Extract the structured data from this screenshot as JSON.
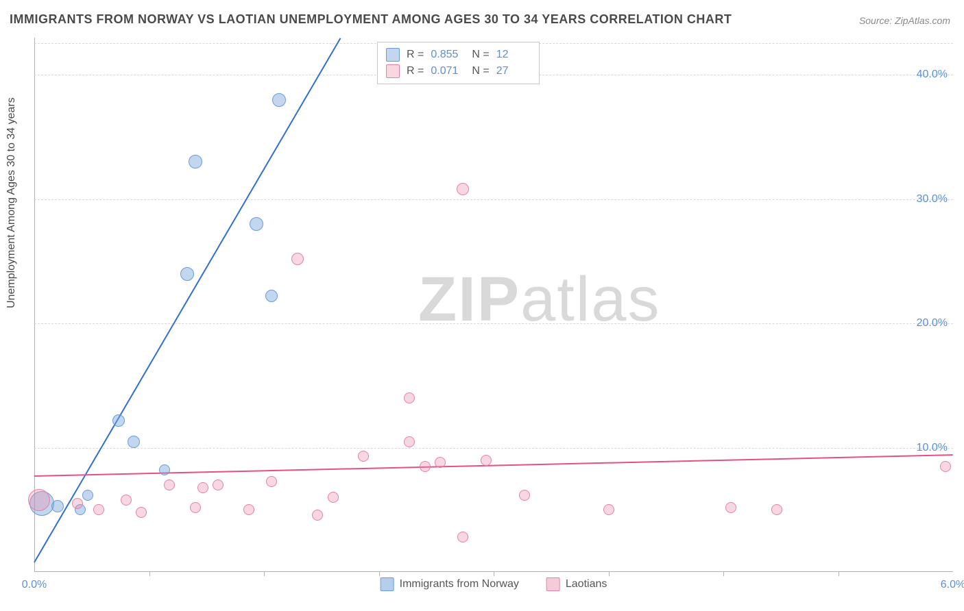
{
  "title": "IMMIGRANTS FROM NORWAY VS LAOTIAN UNEMPLOYMENT AMONG AGES 30 TO 34 YEARS CORRELATION CHART",
  "source": "Source: ZipAtlas.com",
  "y_axis_label": "Unemployment Among Ages 30 to 34 years",
  "watermark_a": "ZIP",
  "watermark_b": "atlas",
  "chart": {
    "type": "scatter",
    "xlim": [
      0.0,
      6.0
    ],
    "ylim": [
      0.0,
      43.0
    ],
    "x_ticks_labeled": [
      {
        "v": 0.0,
        "label": "0.0%"
      },
      {
        "v": 6.0,
        "label": "6.0%"
      }
    ],
    "x_ticks_minor": [
      0.75,
      1.5,
      2.25,
      3.0,
      3.75,
      4.5,
      5.25
    ],
    "y_ticks": [
      {
        "v": 10.0,
        "label": "10.0%"
      },
      {
        "v": 20.0,
        "label": "20.0%"
      },
      {
        "v": 30.0,
        "label": "30.0%"
      },
      {
        "v": 40.0,
        "label": "40.0%"
      }
    ],
    "grid_color": "#d8d8d8",
    "axis_color": "#b0b0b0",
    "background_color": "#ffffff",
    "tick_label_color": "#5a8fd6",
    "series": [
      {
        "name": "Immigrants from Norway",
        "color_fill": "rgba(120,165,220,0.45)",
        "color_stroke": "#6a9bd8",
        "trend_color": "#2f6fd0",
        "R": "0.855",
        "N": "12",
        "trend": {
          "x1": 0.0,
          "y1": 0.8,
          "x2": 2.0,
          "y2": 43.0
        },
        "points": [
          {
            "x": 0.05,
            "y": 5.5,
            "r": 18
          },
          {
            "x": 0.15,
            "y": 5.3,
            "r": 9
          },
          {
            "x": 0.3,
            "y": 5.0,
            "r": 8
          },
          {
            "x": 0.35,
            "y": 6.2,
            "r": 8
          },
          {
            "x": 0.55,
            "y": 12.2,
            "r": 9
          },
          {
            "x": 0.65,
            "y": 10.5,
            "r": 9
          },
          {
            "x": 0.85,
            "y": 8.2,
            "r": 8
          },
          {
            "x": 1.0,
            "y": 24.0,
            "r": 10
          },
          {
            "x": 1.05,
            "y": 33.0,
            "r": 10
          },
          {
            "x": 1.45,
            "y": 28.0,
            "r": 10
          },
          {
            "x": 1.55,
            "y": 22.2,
            "r": 9
          },
          {
            "x": 1.6,
            "y": 38.0,
            "r": 10
          }
        ]
      },
      {
        "name": "Laotians",
        "color_fill": "rgba(235,140,170,0.35)",
        "color_stroke": "#e382a5",
        "trend_color": "#e64e86",
        "R": "0.071",
        "N": "27",
        "trend": {
          "x1": 0.0,
          "y1": 7.8,
          "x2": 6.0,
          "y2": 9.5
        },
        "points": [
          {
            "x": 0.03,
            "y": 5.8,
            "r": 16
          },
          {
            "x": 0.28,
            "y": 5.5,
            "r": 8
          },
          {
            "x": 0.42,
            "y": 5.0,
            "r": 8
          },
          {
            "x": 0.6,
            "y": 5.8,
            "r": 8
          },
          {
            "x": 0.7,
            "y": 4.8,
            "r": 8
          },
          {
            "x": 0.88,
            "y": 7.0,
            "r": 8
          },
          {
            "x": 1.05,
            "y": 5.2,
            "r": 8
          },
          {
            "x": 1.1,
            "y": 6.8,
            "r": 8
          },
          {
            "x": 1.2,
            "y": 7.0,
            "r": 8
          },
          {
            "x": 1.4,
            "y": 5.0,
            "r": 8
          },
          {
            "x": 1.55,
            "y": 7.3,
            "r": 8
          },
          {
            "x": 1.72,
            "y": 25.2,
            "r": 9
          },
          {
            "x": 1.85,
            "y": 4.6,
            "r": 8
          },
          {
            "x": 1.95,
            "y": 6.0,
            "r": 8
          },
          {
            "x": 2.15,
            "y": 9.3,
            "r": 8
          },
          {
            "x": 2.45,
            "y": 14.0,
            "r": 8
          },
          {
            "x": 2.45,
            "y": 10.5,
            "r": 8
          },
          {
            "x": 2.55,
            "y": 8.5,
            "r": 8
          },
          {
            "x": 2.65,
            "y": 8.8,
            "r": 8
          },
          {
            "x": 2.8,
            "y": 2.8,
            "r": 8
          },
          {
            "x": 2.8,
            "y": 30.8,
            "r": 9
          },
          {
            "x": 2.95,
            "y": 9.0,
            "r": 8
          },
          {
            "x": 3.2,
            "y": 6.2,
            "r": 8
          },
          {
            "x": 3.75,
            "y": 5.0,
            "r": 8
          },
          {
            "x": 4.55,
            "y": 5.2,
            "r": 8
          },
          {
            "x": 4.85,
            "y": 5.0,
            "r": 8
          },
          {
            "x": 5.95,
            "y": 8.5,
            "r": 8
          }
        ]
      }
    ]
  },
  "legend_top": {
    "r_label": "R =",
    "n_label": "N ="
  },
  "legend_bottom": [
    {
      "label": "Immigrants from Norway",
      "fill": "rgba(120,165,220,0.55)",
      "stroke": "#6a9bd8"
    },
    {
      "label": "Laotians",
      "fill": "rgba(235,140,170,0.45)",
      "stroke": "#e382a5"
    }
  ]
}
